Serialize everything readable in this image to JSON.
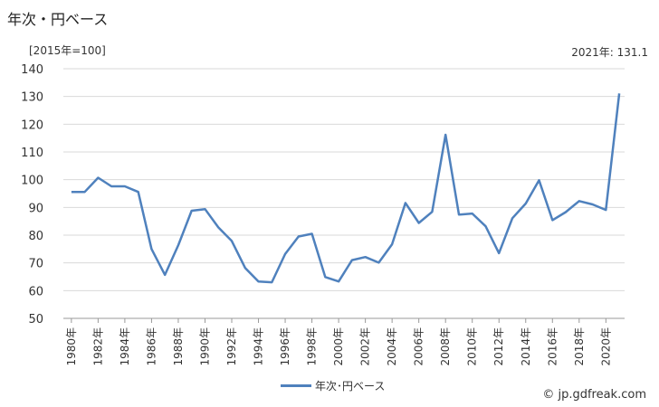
{
  "title": "年次・円ベース",
  "unit_label": "[2015年=100]",
  "latest_label": "2021年: 131.1",
  "legend_label": "年次･円ベース",
  "credit": "© jp.gdfreak.com",
  "chart_data": {
    "type": "line",
    "title": "年次・円ベース",
    "ylabel": "[2015年=100]",
    "xlabel": "",
    "ylim": [
      50,
      140
    ],
    "yticks": [
      50,
      60,
      70,
      80,
      90,
      100,
      110,
      120,
      130,
      140
    ],
    "grid": true,
    "legend_position": "bottom",
    "x": [
      1980,
      1981,
      1982,
      1983,
      1984,
      1985,
      1986,
      1987,
      1988,
      1989,
      1990,
      1991,
      1992,
      1993,
      1994,
      1995,
      1996,
      1997,
      1998,
      1999,
      2000,
      2001,
      2002,
      2003,
      2004,
      2005,
      2006,
      2007,
      2008,
      2009,
      2010,
      2011,
      2012,
      2013,
      2014,
      2015,
      2016,
      2017,
      2018,
      2019,
      2020,
      2021
    ],
    "xtick_labels": [
      "1980年",
      "1982年",
      "1984年",
      "1986年",
      "1988年",
      "1990年",
      "1992年",
      "1994年",
      "1996年",
      "1998年",
      "2000年",
      "2002年",
      "2004年",
      "2006年",
      "2008年",
      "2010年",
      "2012年",
      "2014年",
      "2016年",
      "2018年",
      "2020年"
    ],
    "series": [
      {
        "name": "年次･円ベース",
        "color": "#4f81bd",
        "values": [
          95.6,
          95.6,
          100.7,
          97.6,
          97.6,
          95.6,
          75,
          65.7,
          76.4,
          88.8,
          89.4,
          82.8,
          77.9,
          68.2,
          63.3,
          63,
          73.2,
          79.5,
          80.5,
          64.9,
          63.3,
          71,
          72.1,
          70.1,
          76.7,
          91.6,
          84.4,
          88.4,
          116.2,
          87.4,
          87.8,
          83.2,
          73.5,
          86.1,
          91.4,
          99.8,
          85.4,
          88.3,
          92.3,
          91.1,
          89.1,
          131.1
        ]
      }
    ]
  }
}
